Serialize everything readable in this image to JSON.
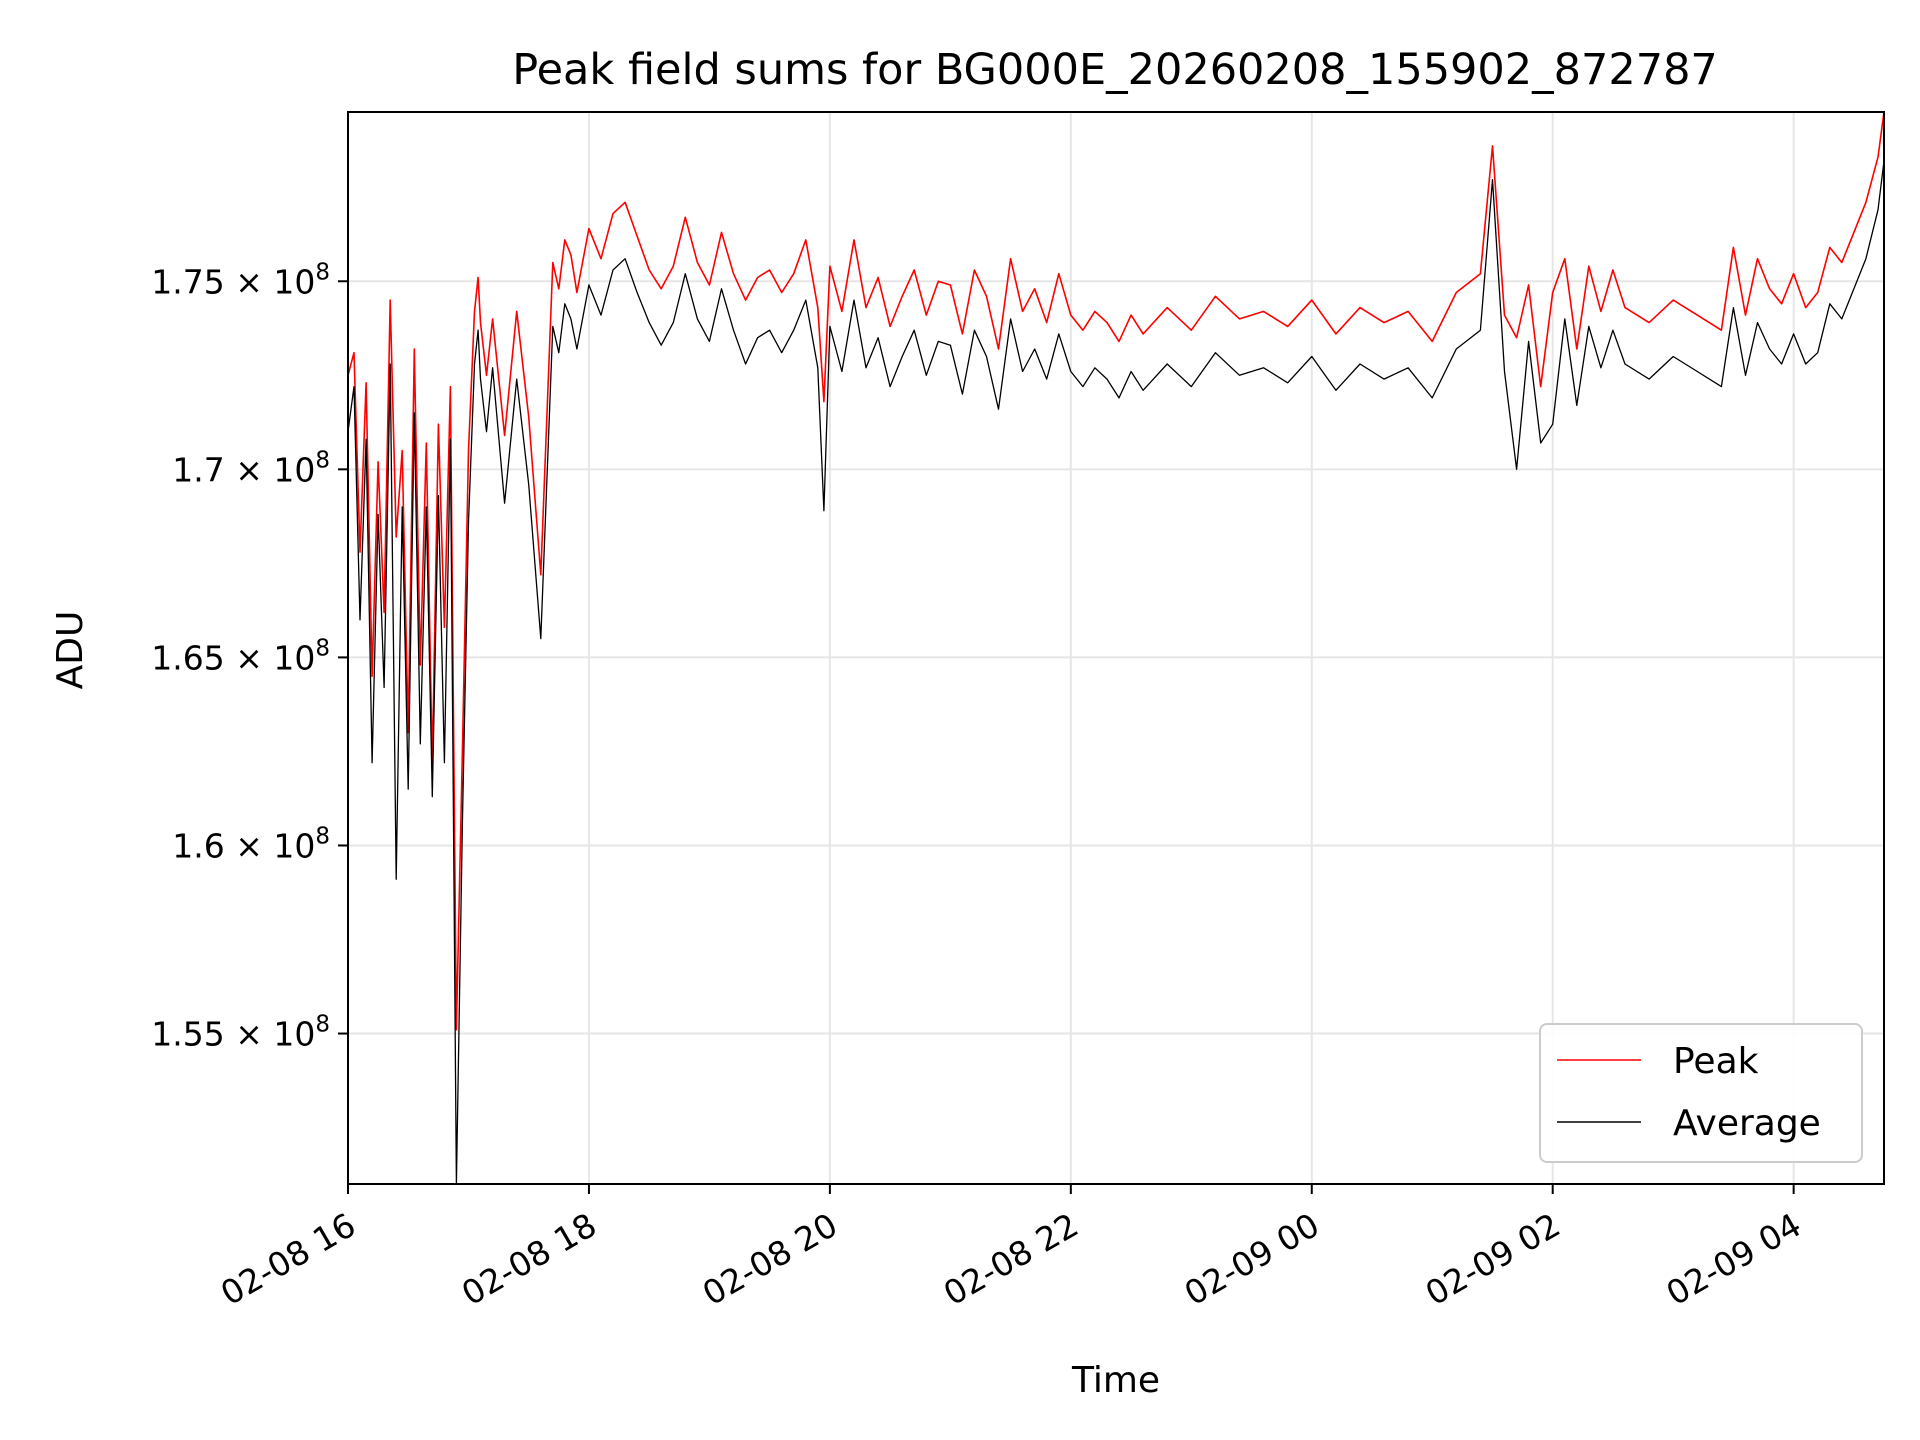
{
  "chart_data": {
    "type": "line",
    "title": "Peak field sums for BG000E_20260208_155902_872787",
    "xlabel": "Time",
    "ylabel": "ADU",
    "xlim_hours": [
      0,
      12.75
    ],
    "ylim": [
      151000000,
      179500000
    ],
    "grid": true,
    "legend_position": "lower-right",
    "x_ticks": [
      {
        "label": "02-08 16",
        "hour": 0
      },
      {
        "label": "02-08 18",
        "hour": 2
      },
      {
        "label": "02-08 20",
        "hour": 4
      },
      {
        "label": "02-08 22",
        "hour": 6
      },
      {
        "label": "02-09 00",
        "hour": 8
      },
      {
        "label": "02-09 02",
        "hour": 10
      },
      {
        "label": "02-09 04",
        "hour": 12
      }
    ],
    "y_ticks": [
      {
        "mantissa": "1.55",
        "exponent": "8",
        "value": 155000000
      },
      {
        "mantissa": "1.6",
        "exponent": "8",
        "value": 160000000
      },
      {
        "mantissa": "1.65",
        "exponent": "8",
        "value": 165000000
      },
      {
        "mantissa": "1.7",
        "exponent": "8",
        "value": 170000000
      },
      {
        "mantissa": "1.75",
        "exponent": "8",
        "value": 175000000
      }
    ],
    "series": [
      {
        "name": "Peak",
        "color": "#ff0000",
        "x_hours": [
          0,
          0.05,
          0.1,
          0.15,
          0.2,
          0.25,
          0.3,
          0.35,
          0.4,
          0.45,
          0.5,
          0.55,
          0.6,
          0.65,
          0.7,
          0.75,
          0.8,
          0.85,
          0.9,
          0.95,
          1.0,
          1.05,
          1.08,
          1.1,
          1.15,
          1.2,
          1.3,
          1.4,
          1.5,
          1.6,
          1.7,
          1.75,
          1.8,
          1.85,
          1.9,
          2.0,
          2.1,
          2.2,
          2.3,
          2.4,
          2.5,
          2.6,
          2.7,
          2.8,
          2.9,
          3.0,
          3.1,
          3.2,
          3.3,
          3.4,
          3.5,
          3.6,
          3.7,
          3.8,
          3.9,
          3.95,
          4.0,
          4.1,
          4.2,
          4.3,
          4.4,
          4.5,
          4.6,
          4.7,
          4.8,
          4.9,
          5.0,
          5.1,
          5.2,
          5.3,
          5.4,
          5.5,
          5.6,
          5.7,
          5.8,
          5.9,
          6.0,
          6.1,
          6.2,
          6.3,
          6.4,
          6.5,
          6.6,
          6.8,
          7.0,
          7.2,
          7.4,
          7.6,
          7.8,
          8.0,
          8.2,
          8.4,
          8.6,
          8.8,
          9.0,
          9.2,
          9.4,
          9.5,
          9.6,
          9.7,
          9.8,
          9.9,
          10.0,
          10.1,
          10.2,
          10.3,
          10.4,
          10.5,
          10.6,
          10.8,
          11.0,
          11.2,
          11.4,
          11.5,
          11.6,
          11.7,
          11.8,
          11.9,
          12.0,
          12.1,
          12.2,
          12.3,
          12.4,
          12.5,
          12.6,
          12.7,
          12.75
        ],
        "values": [
          172500000,
          173100000,
          167800000,
          172300000,
          164500000,
          170200000,
          166200000,
          174500000,
          168200000,
          170500000,
          163000000,
          173200000,
          164800000,
          170700000,
          162100000,
          171200000,
          165800000,
          172200000,
          155100000,
          162500000,
          170500000,
          174200000,
          175100000,
          173900000,
          172500000,
          174000000,
          170900000,
          174200000,
          171400000,
          167200000,
          175500000,
          174800000,
          176100000,
          175700000,
          174700000,
          176400000,
          175600000,
          176800000,
          177100000,
          176200000,
          175300000,
          174800000,
          175400000,
          176700000,
          175500000,
          174900000,
          176300000,
          175200000,
          174500000,
          175100000,
          175300000,
          174700000,
          175200000,
          176100000,
          174300000,
          171800000,
          175400000,
          174200000,
          176100000,
          174300000,
          175100000,
          173800000,
          174600000,
          175300000,
          174100000,
          175000000,
          174900000,
          173600000,
          175300000,
          174600000,
          173200000,
          175600000,
          174200000,
          174800000,
          173900000,
          175200000,
          174100000,
          173700000,
          174200000,
          173900000,
          173400000,
          174100000,
          173600000,
          174300000,
          173700000,
          174600000,
          174000000,
          174200000,
          173800000,
          174500000,
          173600000,
          174300000,
          173900000,
          174200000,
          173400000,
          174700000,
          175200000,
          178600000,
          174100000,
          173500000,
          174900000,
          172200000,
          174700000,
          175600000,
          173200000,
          175400000,
          174200000,
          175300000,
          174300000,
          173900000,
          174500000,
          174100000,
          173700000,
          175900000,
          174100000,
          175600000,
          174800000,
          174400000,
          175200000,
          174300000,
          174700000,
          175900000,
          175500000,
          176300000,
          177100000,
          178300000,
          179500000
        ]
      },
      {
        "name": "Average",
        "color": "#000000",
        "x_hours": [
          0,
          0.05,
          0.1,
          0.15,
          0.2,
          0.25,
          0.3,
          0.35,
          0.4,
          0.45,
          0.5,
          0.55,
          0.6,
          0.65,
          0.7,
          0.75,
          0.8,
          0.85,
          0.9,
          0.95,
          1.0,
          1.05,
          1.08,
          1.1,
          1.15,
          1.2,
          1.3,
          1.4,
          1.5,
          1.6,
          1.7,
          1.75,
          1.8,
          1.85,
          1.9,
          2.0,
          2.1,
          2.2,
          2.3,
          2.4,
          2.5,
          2.6,
          2.7,
          2.8,
          2.9,
          3.0,
          3.1,
          3.2,
          3.3,
          3.4,
          3.5,
          3.6,
          3.7,
          3.8,
          3.9,
          3.95,
          4.0,
          4.1,
          4.2,
          4.3,
          4.4,
          4.5,
          4.6,
          4.7,
          4.8,
          4.9,
          5.0,
          5.1,
          5.2,
          5.3,
          5.4,
          5.5,
          5.6,
          5.7,
          5.8,
          5.9,
          6.0,
          6.1,
          6.2,
          6.3,
          6.4,
          6.5,
          6.6,
          6.8,
          7.0,
          7.2,
          7.4,
          7.6,
          7.8,
          8.0,
          8.2,
          8.4,
          8.6,
          8.8,
          9.0,
          9.2,
          9.4,
          9.5,
          9.6,
          9.7,
          9.8,
          9.9,
          10.0,
          10.1,
          10.2,
          10.3,
          10.4,
          10.5,
          10.6,
          10.8,
          11.0,
          11.2,
          11.4,
          11.5,
          11.6,
          11.7,
          11.8,
          11.9,
          12.0,
          12.1,
          12.2,
          12.3,
          12.4,
          12.5,
          12.6,
          12.7,
          12.75
        ],
        "values": [
          171000000,
          172200000,
          166000000,
          170800000,
          162200000,
          168800000,
          164200000,
          172800000,
          159100000,
          169000000,
          161500000,
          171500000,
          162700000,
          169000000,
          161300000,
          169300000,
          162200000,
          170800000,
          151000000,
          160600000,
          168600000,
          172800000,
          173700000,
          172400000,
          171000000,
          172700000,
          169100000,
          172400000,
          169600000,
          165500000,
          173800000,
          173100000,
          174400000,
          174000000,
          173200000,
          174900000,
          174100000,
          175300000,
          175600000,
          174700000,
          173900000,
          173300000,
          173900000,
          175200000,
          174000000,
          173400000,
          174800000,
          173700000,
          172800000,
          173500000,
          173700000,
          173100000,
          173700000,
          174500000,
          172700000,
          168900000,
          173800000,
          172600000,
          174500000,
          172700000,
          173500000,
          172200000,
          173000000,
          173700000,
          172500000,
          173400000,
          173300000,
          172000000,
          173700000,
          173000000,
          171600000,
          174000000,
          172600000,
          173200000,
          172400000,
          173600000,
          172600000,
          172200000,
          172700000,
          172400000,
          171900000,
          172600000,
          172100000,
          172800000,
          172200000,
          173100000,
          172500000,
          172700000,
          172300000,
          173000000,
          172100000,
          172800000,
          172400000,
          172700000,
          171900000,
          173200000,
          173700000,
          177700000,
          172600000,
          170000000,
          173400000,
          170700000,
          171200000,
          174000000,
          171700000,
          173800000,
          172700000,
          173700000,
          172800000,
          172400000,
          173000000,
          172600000,
          172200000,
          174300000,
          172500000,
          173900000,
          173200000,
          172800000,
          173600000,
          172800000,
          173100000,
          174400000,
          174000000,
          174800000,
          175600000,
          176900000,
          178200000
        ]
      }
    ]
  }
}
